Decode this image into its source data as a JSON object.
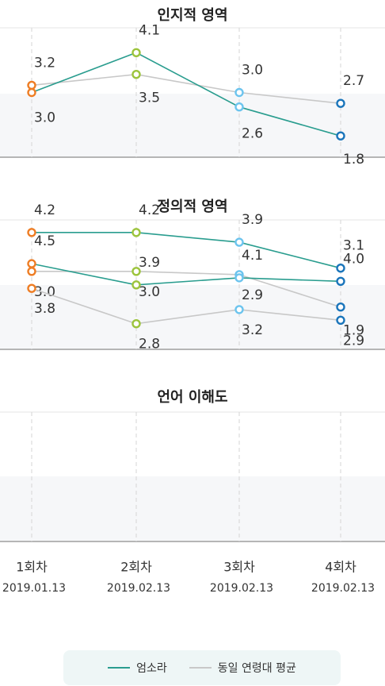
{
  "chart_data": {
    "type": "line",
    "categories": [
      "1회차",
      "2회차",
      "3회차",
      "4회차"
    ],
    "dates": [
      "2019.01.13",
      "2019.02.13",
      "2019.02.13",
      "2019.02.13"
    ],
    "legend": [
      {
        "name": "엄소라",
        "color": "#2a9d8f"
      },
      {
        "name": "동일 연령대 평균",
        "color": "#c8c8c8"
      }
    ],
    "point_colors": [
      "#ee7d24",
      "#9cc43c",
      "#6cc4ee",
      "#1a75bb"
    ],
    "ylim": [
      1,
      5
    ],
    "grid": true,
    "panels": [
      {
        "title": "인지적 영역",
        "series": [
          {
            "name": "엄소라",
            "values": [
              3.0,
              4.1,
              2.6,
              1.8
            ]
          },
          {
            "name": "동일 연령대 평균",
            "values": [
              3.2,
              3.5,
              3.0,
              2.7
            ]
          }
        ]
      },
      {
        "title": "정의적 영역",
        "series": [
          {
            "name": "엄소라",
            "values": [
              4.2,
              4.2,
              3.9,
              3.1
            ]
          },
          {
            "name": "동일 연령대 평균",
            "values": [
              3.0,
              3.0,
              2.9,
              1.9
            ]
          }
        ]
      },
      {
        "title": "언어 이해도",
        "series": [
          {
            "name": "엄소라",
            "values": [
              4.5,
              3.9,
              4.1,
              4.0
            ]
          },
          {
            "name": "동일 연령대 평균",
            "values": [
              3.8,
              2.8,
              3.2,
              2.9
            ]
          }
        ]
      }
    ]
  },
  "value_labels": [
    [
      [
        "3.0",
        "4.1",
        "2.6",
        "1.8"
      ],
      [
        "3.2",
        "3.5",
        "3.0",
        "2.7"
      ]
    ],
    [
      [
        "4.2",
        "4.2",
        "3.9",
        "3.1"
      ],
      [
        "3.0",
        "3.0",
        "2.9",
        "1.9"
      ]
    ],
    [
      [
        "4.5",
        "3.9",
        "4.1",
        "4.0"
      ],
      [
        "3.8",
        "2.8",
        "3.2",
        "2.9"
      ]
    ]
  ]
}
